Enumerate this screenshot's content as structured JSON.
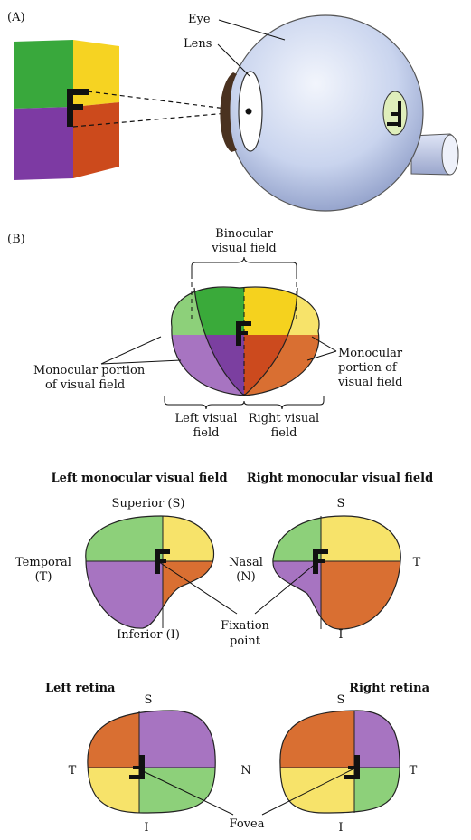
{
  "panel_a": {
    "tag": "(A)",
    "eye_label": "Eye",
    "lens_label": "Lens"
  },
  "panel_b": {
    "tag": "(B)",
    "binocular_line1": "Binocular",
    "binocular_line2": "visual field",
    "mono_left_line1": "Monocular portion",
    "mono_left_line2": "of visual field",
    "mono_right_line1": "Monocular",
    "mono_right_line2": "portion of",
    "mono_right_line3": "visual field",
    "left_field_line1": "Left visual",
    "left_field_line2": "field",
    "right_field_line1": "Right visual",
    "right_field_line2": "field"
  },
  "monocular": {
    "left_title": "Left monocular visual field",
    "right_title": "Right monocular visual field",
    "superior": "Superior (S)",
    "inferior": "Inferior (I)",
    "temporal_line1": "Temporal",
    "temporal_line2": "(T)",
    "nasal_line1": "Nasal",
    "nasal_line2": "(N)",
    "fixation_line1": "Fixation",
    "fixation_line2": "point",
    "right_s": "S",
    "right_t": "T",
    "right_i": "I"
  },
  "retina": {
    "left_title": "Left retina",
    "right_title": "Right retina",
    "left_s": "S",
    "left_t": "T",
    "left_i": "I",
    "n": "N",
    "right_s": "S",
    "right_t": "T",
    "right_i": "I",
    "fovea": "Fovea"
  },
  "colors": {
    "green": "#3aaa3a",
    "yellow": "#f5d21e",
    "purple": "#7b3fa0",
    "orange": "#cc4a1e",
    "light_green": "#8dd07a",
    "light_yellow": "#f7e36a",
    "light_purple": "#a774c1",
    "light_orange": "#d96f32",
    "eyeball": "#c7d3ee"
  }
}
